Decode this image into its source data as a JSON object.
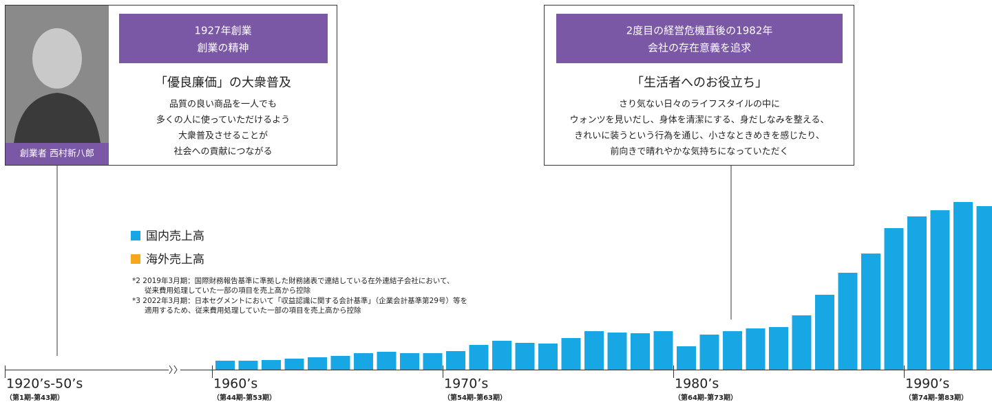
{
  "chart_data": {
    "type": "bar",
    "cards": [
      {
        "caption": "創業者 西村新八郎",
        "title": [
          "1927年創業",
          "創業の精神"
        ],
        "heading": "「優良廉価」の大衆普及",
        "body": [
          "品質の良い商品を一人でも",
          "多くの人に使っていただけるよう",
          "大衆普及させることが",
          "社会への貢献につながる"
        ]
      },
      {
        "title": [
          "2度目の経営危機直後の1982年",
          "会社の存在意義を追求"
        ],
        "heading": "「生活者へのお役立ち」",
        "body": [
          "さり気ない日々のライフスタイルの中に",
          "ウォンツを見いだし、身体を清潔にする、身だしなみを整える、",
          "きれいに装うという行為を通じ、小さなときめきを感じたり、",
          "前向きで晴れやかな気持ちになっていただく"
        ]
      }
    ],
    "notes": [
      "*2 2019年3月期：国際財務報告基準に準拠した財務諸表で連結している在外連結子会社において、",
      "従来費用処理していた一部の項目を売上高から控除",
      "*3 2022年3月期：日本セグメントにおいて「収益認識に関する会計基準」（企業会計基準第29号）等を",
      "適用するため、従来費用処理していた一部の項目を売上高から控除"
    ],
    "periods": [
      {
        "label": "1920’s-50’s",
        "sub": "（第1期-第43期）"
      },
      {
        "label": "1960’s",
        "sub": "（第44期-第53期）"
      },
      {
        "label": "1970’s",
        "sub": "（第54期-第63期）"
      },
      {
        "label": "1980’s",
        "sub": "（第64期-第73期）"
      },
      {
        "label": "1990’s",
        "sub": "（第74期-第83期）"
      }
    ],
    "ylim": [
      0,
      250
    ],
    "series": [
      {
        "name": "国内売上高",
        "color": "#18a7e5",
        "values": [
          13,
          13,
          14,
          16,
          18,
          20,
          24,
          26,
          24,
          24,
          27,
          36,
          42,
          39,
          38,
          46,
          56,
          54,
          53,
          56,
          34,
          51,
          56,
          60,
          62,
          79,
          109,
          141,
          169,
          206,
          223,
          232,
          244,
          238
        ]
      },
      {
        "name": "海外売上高",
        "color": "#f6a81c",
        "values": [
          null,
          null,
          null,
          null,
          null,
          null,
          null,
          null,
          null,
          null,
          null,
          null,
          null,
          null,
          null,
          null,
          null,
          null,
          null,
          null,
          null,
          null,
          null,
          null,
          null,
          null,
          null,
          null,
          null,
          null,
          null,
          null,
          null,
          null
        ]
      }
    ]
  }
}
